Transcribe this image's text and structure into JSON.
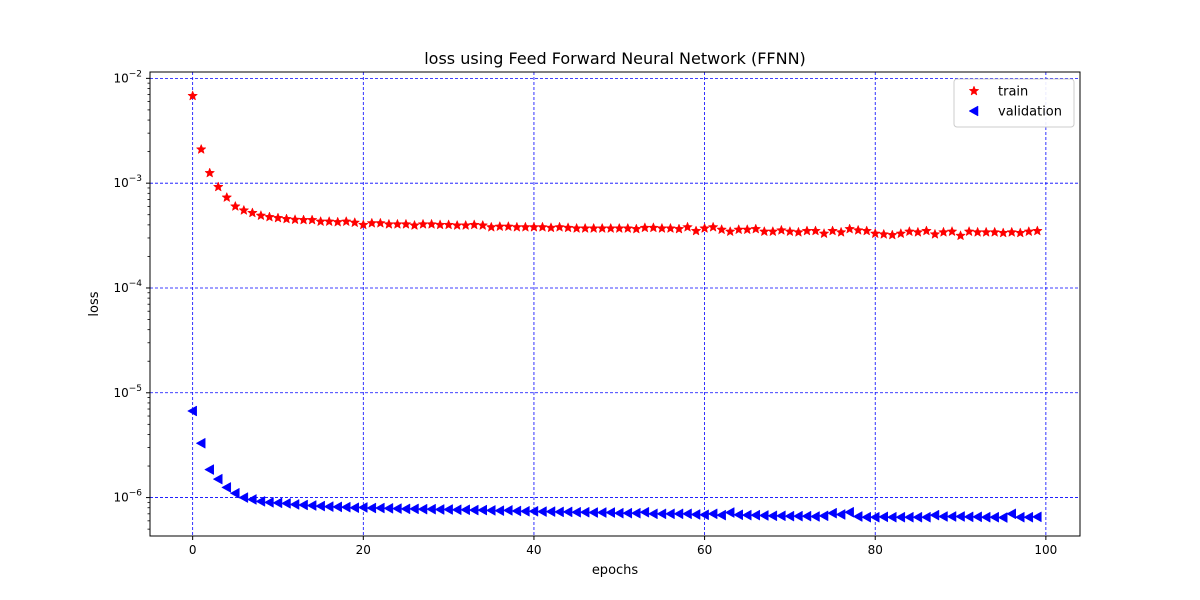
{
  "chart_data": {
    "type": "scatter",
    "title": "loss using Feed Forward Neural Network (FFNN)",
    "xlabel": "epochs",
    "ylabel": "loss",
    "xlim": [
      -5,
      104
    ],
    "ylim": [
      4.3e-07,
      0.0115
    ],
    "yscale": "log",
    "xticks": [
      0,
      20,
      40,
      60,
      80,
      100
    ],
    "yticks": [
      1e-06,
      1e-05,
      0.0001,
      0.001,
      0.01
    ],
    "ytick_labels": [
      {
        "base": "10",
        "exp": "−6"
      },
      {
        "base": "10",
        "exp": "−5"
      },
      {
        "base": "10",
        "exp": "−4"
      },
      {
        "base": "10",
        "exp": "−3"
      },
      {
        "base": "10",
        "exp": "−2"
      }
    ],
    "grid": true,
    "grid_color": "#0000ff",
    "legend_position": "top-right",
    "series": [
      {
        "name": "train",
        "marker": "star",
        "color": "#ff0000",
        "values": [
          0.0068,
          0.0021,
          0.00125,
          0.00092,
          0.00073,
          0.0006,
          0.00055,
          0.00052,
          0.00049,
          0.000475,
          0.000465,
          0.000455,
          0.000448,
          0.000445,
          0.000445,
          0.00043,
          0.00043,
          0.000425,
          0.00043,
          0.00042,
          0.0004,
          0.000415,
          0.000415,
          0.000405,
          0.000405,
          0.000405,
          0.000395,
          0.000405,
          0.000405,
          0.0004,
          0.0004,
          0.000395,
          0.000395,
          0.0004,
          0.000395,
          0.00038,
          0.000385,
          0.000385,
          0.00038,
          0.00038,
          0.00038,
          0.00038,
          0.000375,
          0.00038,
          0.000375,
          0.00037,
          0.00037,
          0.00037,
          0.00037,
          0.00037,
          0.00037,
          0.00037,
          0.000365,
          0.000375,
          0.000375,
          0.00037,
          0.00037,
          0.000365,
          0.00038,
          0.00035,
          0.00037,
          0.00038,
          0.00036,
          0.000345,
          0.00036,
          0.00036,
          0.000365,
          0.000345,
          0.000345,
          0.000355,
          0.000345,
          0.00034,
          0.00035,
          0.00035,
          0.00033,
          0.00035,
          0.00034,
          0.000365,
          0.000355,
          0.00035,
          0.00033,
          0.000325,
          0.00032,
          0.00033,
          0.000345,
          0.00034,
          0.00035,
          0.000325,
          0.00034,
          0.000345,
          0.000315,
          0.000345,
          0.00034,
          0.00034,
          0.00034,
          0.000335,
          0.00034,
          0.000335,
          0.000345,
          0.00035
        ]
      },
      {
        "name": "validation",
        "marker": "triangle-left",
        "color": "#0000ff",
        "values": [
          6.7e-06,
          3.3e-06,
          1.85e-06,
          1.5e-06,
          1.25e-06,
          1.1e-06,
          1e-06,
          9.6e-07,
          9.2e-07,
          9e-07,
          8.9e-07,
          8.8e-07,
          8.6e-07,
          8.5e-07,
          8.4e-07,
          8.3e-07,
          8.2e-07,
          8.15e-07,
          8.1e-07,
          8e-07,
          8.05e-07,
          7.95e-07,
          7.95e-07,
          7.9e-07,
          7.85e-07,
          7.8e-07,
          7.8e-07,
          7.75e-07,
          7.75e-07,
          7.7e-07,
          7.7e-07,
          7.65e-07,
          7.65e-07,
          7.6e-07,
          7.6e-07,
          7.55e-07,
          7.5e-07,
          7.55e-07,
          7.45e-07,
          7.4e-07,
          7.4e-07,
          7.35e-07,
          7.35e-07,
          7.3e-07,
          7.3e-07,
          7.25e-07,
          7.25e-07,
          7.2e-07,
          7.2e-07,
          7.2e-07,
          7.1e-07,
          7.1e-07,
          7.1e-07,
          7.25e-07,
          7e-07,
          7e-07,
          7e-07,
          7e-07,
          7e-07,
          6.9e-07,
          6.85e-07,
          7e-07,
          6.8e-07,
          7.2e-07,
          6.85e-07,
          6.8e-07,
          6.8e-07,
          6.75e-07,
          6.7e-07,
          6.7e-07,
          6.65e-07,
          6.65e-07,
          6.65e-07,
          6.6e-07,
          6.7e-07,
          7.1e-07,
          6.9e-07,
          7.25e-07,
          6.6e-07,
          6.5e-07,
          6.5e-07,
          6.55e-07,
          6.5e-07,
          6.5e-07,
          6.5e-07,
          6.5e-07,
          6.5e-07,
          6.8e-07,
          6.6e-07,
          6.6e-07,
          6.6e-07,
          6.55e-07,
          6.55e-07,
          6.5e-07,
          6.5e-07,
          6.45e-07,
          7e-07,
          6.5e-07,
          6.5e-07,
          6.55e-07
        ]
      }
    ]
  }
}
